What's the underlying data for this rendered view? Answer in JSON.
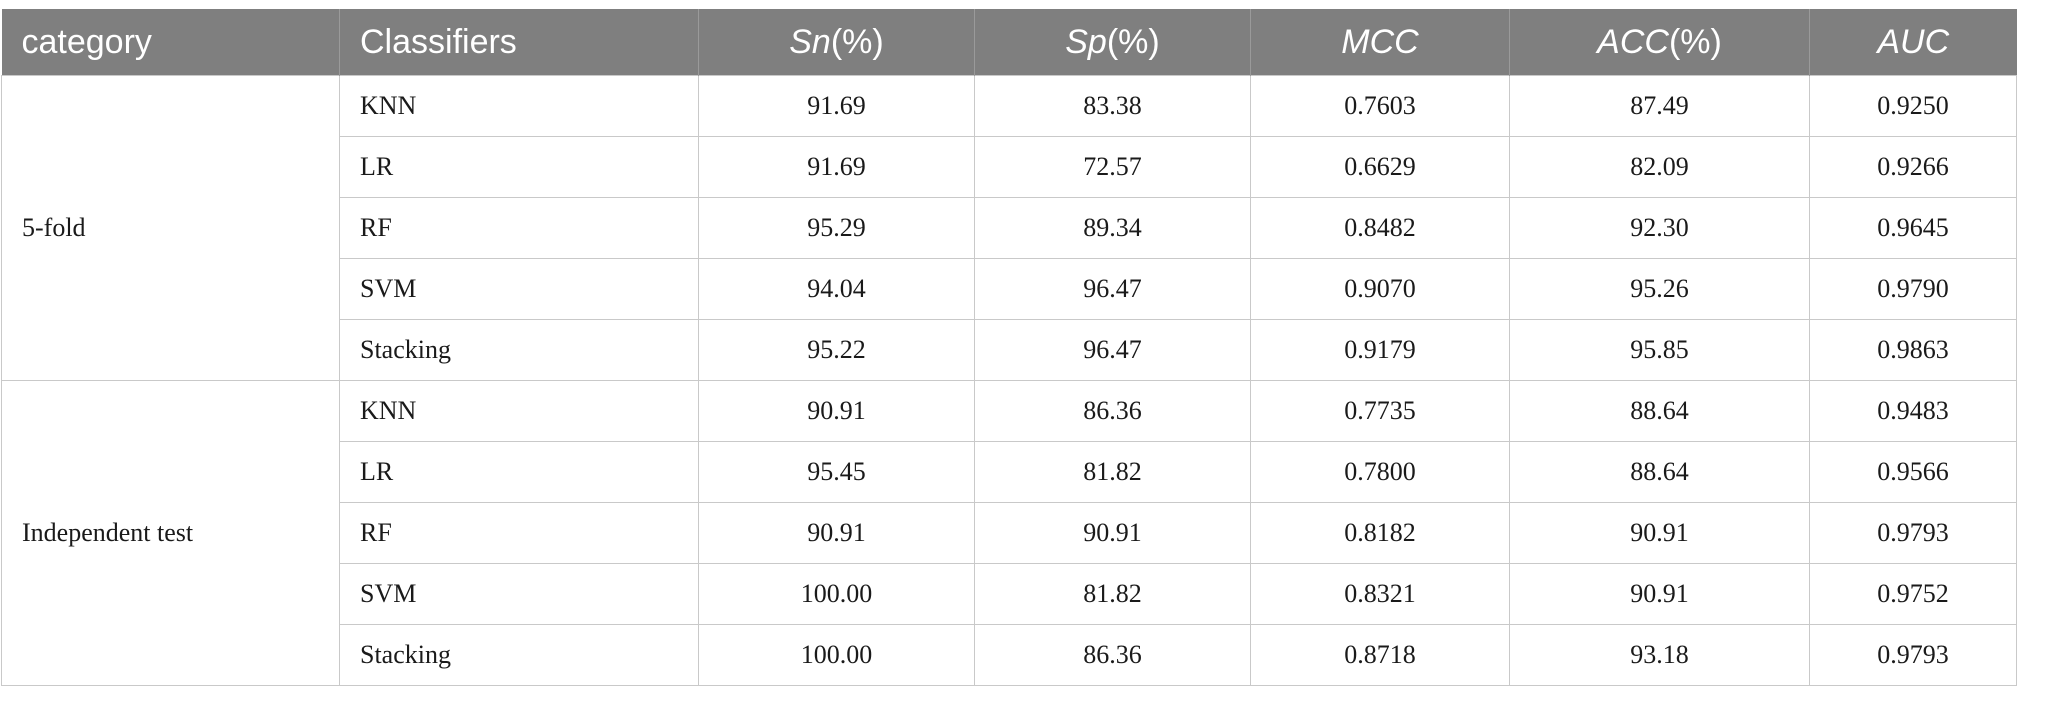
{
  "headers": {
    "category": "category",
    "classifiers": "Classifiers",
    "sn": {
      "main": "Sn",
      "rest": "(%)"
    },
    "sp": {
      "main": "Sp",
      "rest": "(%)"
    },
    "mcc": {
      "main": "MCC",
      "rest": ""
    },
    "acc": {
      "main": "ACC",
      "rest": "(%)"
    },
    "auc": {
      "main": "AUC",
      "rest": ""
    }
  },
  "groups": [
    {
      "category": "5-fold",
      "rows": [
        {
          "classifier": "KNN",
          "sn": "91.69",
          "sp": "83.38",
          "mcc": "0.7603",
          "acc": "87.49",
          "auc": "0.9250"
        },
        {
          "classifier": "LR",
          "sn": "91.69",
          "sp": "72.57",
          "mcc": "0.6629",
          "acc": "82.09",
          "auc": "0.9266"
        },
        {
          "classifier": "RF",
          "sn": "95.29",
          "sp": "89.34",
          "mcc": "0.8482",
          "acc": "92.30",
          "auc": "0.9645"
        },
        {
          "classifier": "SVM",
          "sn": "94.04",
          "sp": "96.47",
          "mcc": "0.9070",
          "acc": "95.26",
          "auc": "0.9790"
        },
        {
          "classifier": "Stacking",
          "sn": "95.22",
          "sp": "96.47",
          "mcc": "0.9179",
          "acc": "95.85",
          "auc": "0.9863"
        }
      ]
    },
    {
      "category": "Independent test",
      "rows": [
        {
          "classifier": "KNN",
          "sn": "90.91",
          "sp": "86.36",
          "mcc": "0.7735",
          "acc": "88.64",
          "auc": "0.9483"
        },
        {
          "classifier": "LR",
          "sn": "95.45",
          "sp": "81.82",
          "mcc": "0.7800",
          "acc": "88.64",
          "auc": "0.9566"
        },
        {
          "classifier": "RF",
          "sn": "90.91",
          "sp": "90.91",
          "mcc": "0.8182",
          "acc": "90.91",
          "auc": "0.9793"
        },
        {
          "classifier": "SVM",
          "sn": "100.00",
          "sp": "81.82",
          "mcc": "0.8321",
          "acc": "90.91",
          "auc": "0.9752"
        },
        {
          "classifier": "Stacking",
          "sn": "100.00",
          "sp": "86.36",
          "mcc": "0.8718",
          "acc": "93.18",
          "auc": "0.9793"
        }
      ]
    }
  ]
}
